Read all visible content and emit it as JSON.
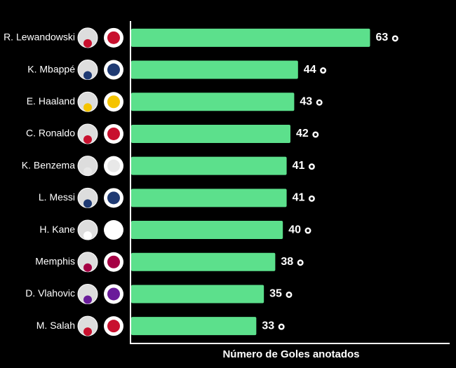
{
  "chart_data": {
    "type": "barh",
    "x_label": "Número de Goles anotados",
    "categories": [
      "R. Lewandowski",
      "K. Mbappé",
      "E. Haaland",
      "C. Ronaldo",
      "K. Benzema",
      "L. Messi",
      "H. Kane",
      "Memphis",
      "D. Vlahovic",
      "M. Salah"
    ],
    "values": [
      63,
      44,
      43,
      42,
      41,
      41,
      40,
      38,
      35,
      33
    ],
    "color": "#5ce08c",
    "xlim": [
      0,
      84
    ]
  }
}
